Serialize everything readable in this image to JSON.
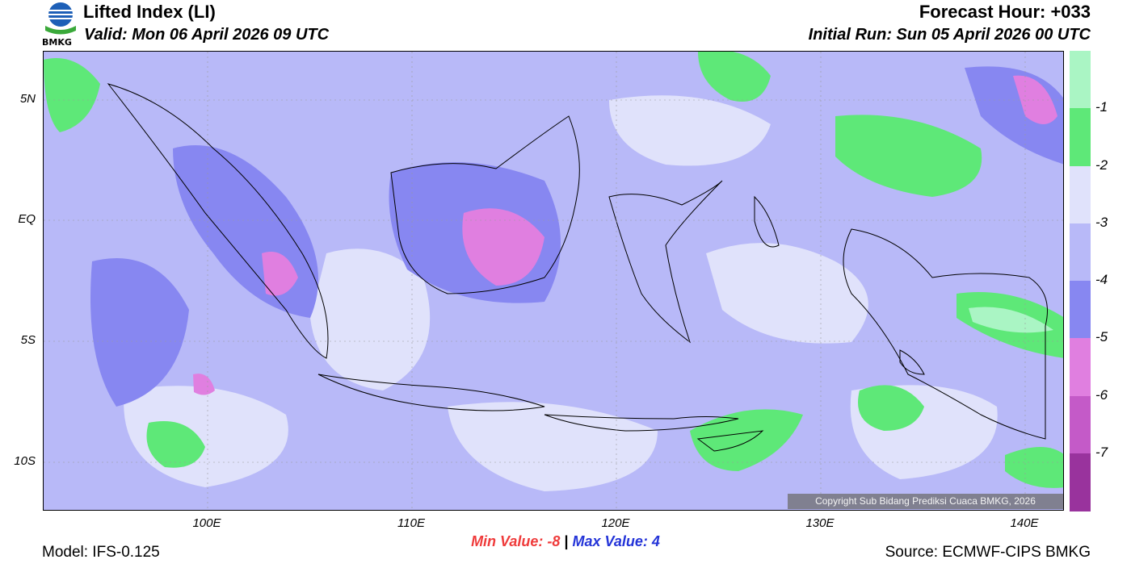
{
  "header": {
    "title": "Lifted Index (LI)",
    "valid": "Valid: Mon 06 April 2026 09 UTC",
    "forecast_hour": "Forecast Hour: +033",
    "initial_run": "Initial Run: Sun 05 April 2026 00 UTC",
    "logo_text": "BMKG"
  },
  "map": {
    "lat_labels": [
      "5N",
      "EQ",
      "5S",
      "10S"
    ],
    "lon_labels": [
      "100E",
      "110E",
      "120E",
      "130E",
      "140E"
    ],
    "copyright": "Copyright Sub Bidang Prediksi Cuaca BMKG, 2026"
  },
  "legend": {
    "labels": [
      "-1",
      "-2",
      "-3",
      "-4",
      "-5",
      "-6",
      "-7"
    ],
    "colors": [
      "#aaf5c4",
      "#5ee878",
      "#e0e2fb",
      "#b8b9f8",
      "#8787f1",
      "#e07fe0",
      "#c45ac8",
      "#99339d"
    ]
  },
  "stats": {
    "min_label": "Min Value:",
    "min_value": "-8",
    "separator": "|",
    "max_label": "Max Value:",
    "max_value": "4"
  },
  "footer": {
    "model": "Model: IFS-0.125",
    "source": "Source: ECMWF-CIPS BMKG"
  }
}
